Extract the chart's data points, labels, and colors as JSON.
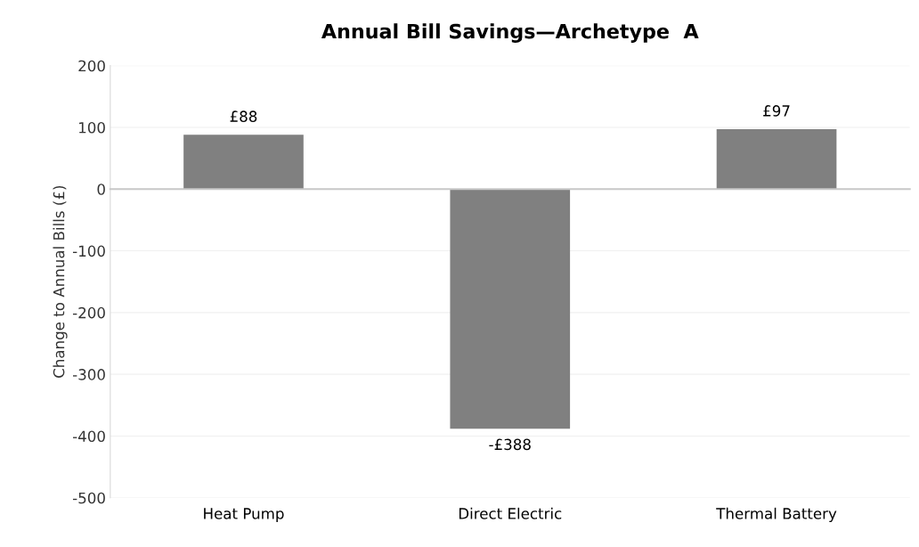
{
  "chart_data": {
    "type": "bar",
    "title": "Annual Bill Savings—Archetype  A",
    "ylabel": "Change to Annual Bills (£)",
    "categories": [
      "Heat Pump",
      "Direct Electric",
      "Thermal Battery"
    ],
    "values": [
      88,
      -388,
      97
    ],
    "value_labels": [
      "£88",
      "-£388",
      "£97"
    ],
    "color": "#808080",
    "ylim": [
      -500,
      200
    ],
    "yticks": [
      -500,
      -400,
      -300,
      -200,
      -100,
      0,
      100,
      200
    ],
    "grid": "y"
  }
}
